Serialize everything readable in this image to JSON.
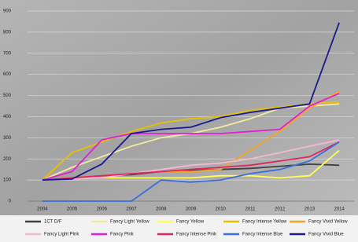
{
  "chart_data": {
    "type": "line",
    "categories": [
      "2004",
      "2005",
      "2006",
      "2007",
      "2008",
      "2009",
      "2010",
      "2011",
      "2012",
      "2013",
      "2014"
    ],
    "ylim": [
      0,
      900
    ],
    "yticks": [
      0,
      100,
      200,
      300,
      400,
      500,
      600,
      700,
      800,
      900
    ],
    "grid": true,
    "series": [
      {
        "name": "1CT D/F",
        "color": "#404040",
        "values": [
          100,
          110,
          120,
          125,
          140,
          145,
          150,
          155,
          165,
          175,
          170
        ]
      },
      {
        "name": "Fancy Light Yellow",
        "color": "#f3eaa0",
        "values": [
          100,
          160,
          210,
          260,
          300,
          320,
          350,
          390,
          440,
          450,
          460
        ]
      },
      {
        "name": "Fancy Yellow",
        "color": "#ffff55",
        "values": [
          100,
          110,
          110,
          110,
          110,
          110,
          120,
          120,
          110,
          120,
          240
        ]
      },
      {
        "name": "Fancy Intense Yellow",
        "color": "#e8c000",
        "values": [
          100,
          230,
          280,
          330,
          370,
          390,
          400,
          430,
          445,
          460,
          470
        ]
      },
      {
        "name": "Fancy Vivid Yellow",
        "color": "#f5a623",
        "values": [
          100,
          110,
          120,
          130,
          140,
          140,
          150,
          240,
          330,
          440,
          520
        ]
      },
      {
        "name": "Fancy Light Pink",
        "color": "#f7b6d2",
        "values": [
          100,
          105,
          110,
          130,
          150,
          170,
          180,
          200,
          230,
          260,
          290
        ]
      },
      {
        "name": "Fancy Pink",
        "color": "#e020d0",
        "values": [
          100,
          140,
          290,
          320,
          320,
          320,
          320,
          330,
          340,
          450,
          510
        ]
      },
      {
        "name": "Fancy Intense Pink",
        "color": "#e0245e",
        "values": [
          100,
          110,
          120,
          130,
          140,
          150,
          160,
          170,
          190,
          210,
          280
        ]
      },
      {
        "name": "Fancy Intense Blue",
        "color": "#3a6fd8",
        "values": [
          0,
          0,
          0,
          0,
          100,
          90,
          100,
          130,
          150,
          190,
          280
        ]
      },
      {
        "name": "Fancy Vivid Blue",
        "color": "#1a1a8c",
        "values": [
          100,
          105,
          175,
          320,
          340,
          350,
          395,
          420,
          440,
          460,
          845
        ]
      }
    ]
  }
}
